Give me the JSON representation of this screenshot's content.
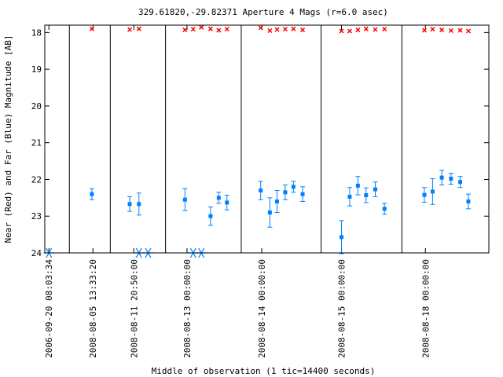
{
  "chart_data": {
    "type": "scatter",
    "title": "329.61820,-29.82371   Aperture 4 Mags (r=6.0 asec)",
    "xlabel": "Middle of observation (1 tic=14400 seconds)",
    "ylabel": "Near (Red) and Far (Blue) Magnitude [AB]",
    "ylim": [
      24,
      17.8
    ],
    "y_ticks": [
      18,
      19,
      20,
      21,
      22,
      23,
      24
    ],
    "grid": false,
    "x_ticks": [
      {
        "label": "2006-09-20 08:03:34",
        "x": 0
      },
      {
        "label": "2008-08-05 13:33:20",
        "x": 2.15
      },
      {
        "label": "2008-08-11 20:50:00",
        "x": 4.15
      },
      {
        "label": "2008-08-13 00:00:00",
        "x": 6.75
      },
      {
        "label": "2008-08-14 00:00:00",
        "x": 10.4
      },
      {
        "label": "2008-08-15 00:00:00",
        "x": 14.3
      },
      {
        "label": "2008-08-18 00:00:00",
        "x": 18.4
      }
    ],
    "xlim": [
      -0.2,
      21.5
    ],
    "segment_breaks": [
      1,
      3,
      5.7,
      9.4,
      13.3,
      17.25
    ],
    "series": [
      {
        "color": "#ff0000",
        "marker": "x",
        "points": [
          {
            "x": 2.1,
            "y": 17.9
          },
          {
            "x": 3.95,
            "y": 17.92
          },
          {
            "x": 4.4,
            "y": 17.9
          },
          {
            "x": 6.65,
            "y": 17.93
          },
          {
            "x": 7.05,
            "y": 17.91
          },
          {
            "x": 7.45,
            "y": 17.86
          },
          {
            "x": 7.9,
            "y": 17.9
          },
          {
            "x": 8.3,
            "y": 17.94
          },
          {
            "x": 8.7,
            "y": 17.91
          },
          {
            "x": 10.35,
            "y": 17.87
          },
          {
            "x": 10.8,
            "y": 17.95
          },
          {
            "x": 11.15,
            "y": 17.92
          },
          {
            "x": 11.55,
            "y": 17.91
          },
          {
            "x": 11.95,
            "y": 17.9
          },
          {
            "x": 12.4,
            "y": 17.93
          },
          {
            "x": 14.3,
            "y": 17.96
          },
          {
            "x": 14.7,
            "y": 17.96
          },
          {
            "x": 15.1,
            "y": 17.93
          },
          {
            "x": 15.5,
            "y": 17.9
          },
          {
            "x": 15.95,
            "y": 17.92
          },
          {
            "x": 16.4,
            "y": 17.91
          },
          {
            "x": 18.35,
            "y": 17.94
          },
          {
            "x": 18.75,
            "y": 17.91
          },
          {
            "x": 19.2,
            "y": 17.93
          },
          {
            "x": 19.65,
            "y": 17.95
          },
          {
            "x": 20.1,
            "y": 17.94
          },
          {
            "x": 20.5,
            "y": 17.96
          }
        ]
      },
      {
        "color": "#0080ff",
        "marker": "square",
        "points": [
          {
            "x": 2.1,
            "y": 22.4,
            "err": 0.15
          },
          {
            "x": 3.95,
            "y": 22.67,
            "err": 0.2
          },
          {
            "x": 4.4,
            "y": 22.67,
            "err": 0.3
          },
          {
            "x": 6.65,
            "y": 22.55,
            "err": 0.3
          },
          {
            "x": 7.9,
            "y": 23.0,
            "err": 0.25
          },
          {
            "x": 8.3,
            "y": 22.5,
            "err": 0.15
          },
          {
            "x": 8.7,
            "y": 22.63,
            "err": 0.2
          },
          {
            "x": 10.35,
            "y": 22.3,
            "err": 0.25
          },
          {
            "x": 10.8,
            "y": 22.9,
            "err": 0.4
          },
          {
            "x": 11.15,
            "y": 22.6,
            "err": 0.3
          },
          {
            "x": 11.55,
            "y": 22.35,
            "err": 0.2
          },
          {
            "x": 11.95,
            "y": 22.2,
            "err": 0.15
          },
          {
            "x": 12.4,
            "y": 22.4,
            "err": 0.2
          },
          {
            "x": 14.3,
            "y": 23.57,
            "err": 0.45
          },
          {
            "x": 14.7,
            "y": 22.47,
            "err": 0.25
          },
          {
            "x": 15.1,
            "y": 22.17,
            "err": 0.25
          },
          {
            "x": 15.5,
            "y": 22.43,
            "err": 0.2
          },
          {
            "x": 15.95,
            "y": 22.27,
            "err": 0.2
          },
          {
            "x": 16.4,
            "y": 22.8,
            "err": 0.15
          },
          {
            "x": 18.35,
            "y": 22.42,
            "err": 0.2
          },
          {
            "x": 18.75,
            "y": 22.33,
            "err": 0.35
          },
          {
            "x": 19.2,
            "y": 21.95,
            "err": 0.2
          },
          {
            "x": 19.65,
            "y": 21.98,
            "err": 0.15
          },
          {
            "x": 20.1,
            "y": 22.07,
            "err": 0.15
          },
          {
            "x": 20.5,
            "y": 22.6,
            "err": 0.2
          }
        ]
      },
      {
        "color": "#0080ff",
        "marker": "asterisk",
        "points": [
          {
            "x": 0,
            "y": 24
          },
          {
            "x": 4.4,
            "y": 24
          },
          {
            "x": 4.85,
            "y": 24
          },
          {
            "x": 7.05,
            "y": 24
          },
          {
            "x": 7.45,
            "y": 24
          }
        ]
      }
    ]
  }
}
